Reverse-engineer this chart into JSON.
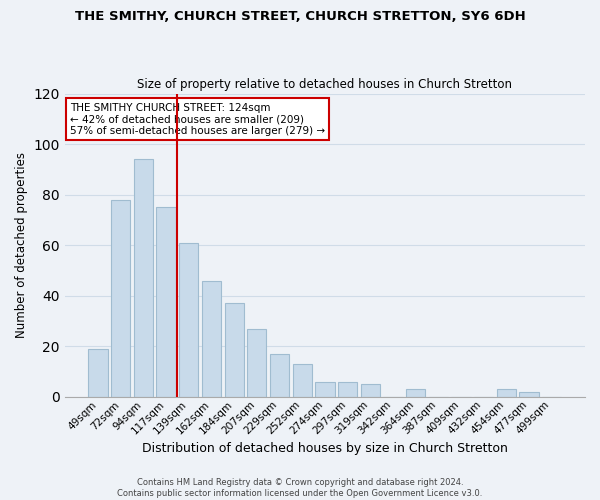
{
  "title": "THE SMITHY, CHURCH STREET, CHURCH STRETTON, SY6 6DH",
  "subtitle": "Size of property relative to detached houses in Church Stretton",
  "xlabel": "Distribution of detached houses by size in Church Stretton",
  "ylabel": "Number of detached properties",
  "bar_labels": [
    "49sqm",
    "72sqm",
    "94sqm",
    "117sqm",
    "139sqm",
    "162sqm",
    "184sqm",
    "207sqm",
    "229sqm",
    "252sqm",
    "274sqm",
    "297sqm",
    "319sqm",
    "342sqm",
    "364sqm",
    "387sqm",
    "409sqm",
    "432sqm",
    "454sqm",
    "477sqm",
    "499sqm"
  ],
  "bar_heights": [
    19,
    78,
    94,
    75,
    61,
    46,
    37,
    27,
    17,
    13,
    6,
    6,
    5,
    0,
    3,
    0,
    0,
    0,
    3,
    2,
    0
  ],
  "bar_color": "#c8daea",
  "bar_edge_color": "#a0bcd0",
  "highlight_index": 3,
  "highlight_line_color": "#cc0000",
  "ylim": [
    0,
    120
  ],
  "yticks": [
    0,
    20,
    40,
    60,
    80,
    100,
    120
  ],
  "annotation_title": "THE SMITHY CHURCH STREET: 124sqm",
  "annotation_line1": "← 42% of detached houses are smaller (209)",
  "annotation_line2": "57% of semi-detached houses are larger (279) →",
  "annotation_box_color": "#ffffff",
  "annotation_box_edge": "#cc0000",
  "grid_color": "#d0dce8",
  "background_color": "#eef2f7",
  "footer_line1": "Contains HM Land Registry data © Crown copyright and database right 2024.",
  "footer_line2": "Contains public sector information licensed under the Open Government Licence v3.0."
}
